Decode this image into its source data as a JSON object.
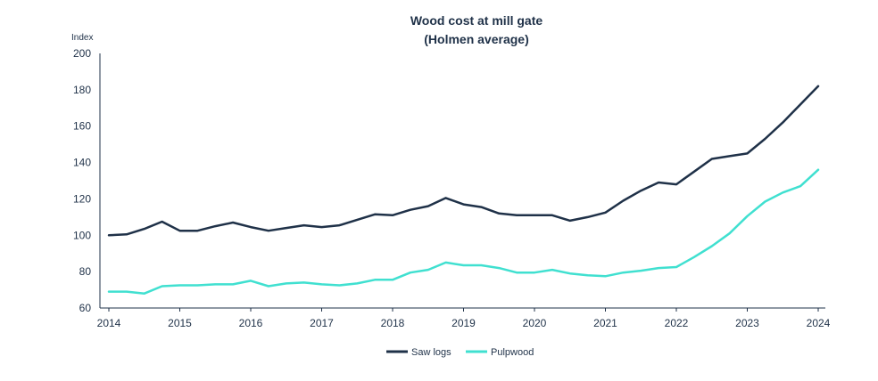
{
  "chart_data": {
    "type": "line",
    "title": "Wood cost at mill gate",
    "subtitle": "(Holmen average)",
    "ylabel": "Index",
    "xlabel": "",
    "ylim": [
      60,
      200
    ],
    "yticks": [
      60,
      80,
      100,
      120,
      140,
      160,
      180,
      200
    ],
    "xlim": [
      2014,
      2024
    ],
    "xticks": [
      "2014",
      "2015",
      "2016",
      "2017",
      "2018",
      "2019",
      "2020",
      "2021",
      "2022",
      "2023",
      "2024"
    ],
    "grid": false,
    "legend_position": "bottom-center",
    "x": [
      2014,
      2014.25,
      2014.5,
      2014.75,
      2015,
      2015.25,
      2015.5,
      2015.75,
      2016,
      2016.25,
      2016.5,
      2016.75,
      2017,
      2017.25,
      2017.5,
      2017.75,
      2018,
      2018.25,
      2018.5,
      2018.75,
      2019,
      2019.25,
      2019.5,
      2019.75,
      2020,
      2020.25,
      2020.5,
      2020.75,
      2021,
      2021.25,
      2021.5,
      2021.75,
      2022,
      2022.25,
      2022.5,
      2022.75,
      2023,
      2023.25,
      2023.5,
      2023.75,
      2024
    ],
    "series": [
      {
        "name": "Saw logs",
        "color": "#1f3148",
        "values": [
          100,
          100.5,
          103.5,
          107.5,
          102.5,
          102.5,
          105,
          107,
          104.5,
          102.5,
          104,
          105.5,
          104.5,
          105.5,
          108.5,
          111.5,
          111,
          114,
          116,
          120.5,
          117,
          115.5,
          112,
          111,
          111,
          111,
          108,
          110,
          112.5,
          119,
          124.5,
          129,
          128,
          135,
          142,
          143.5,
          145,
          153,
          162,
          172,
          182
        ]
      },
      {
        "name": "Pulpwood",
        "color": "#40e0d0",
        "values": [
          69,
          69,
          68,
          72,
          72.5,
          72.5,
          73,
          73,
          75,
          72,
          73.5,
          74,
          73,
          72.5,
          73.5,
          75.5,
          75.5,
          79.5,
          81,
          85,
          83.5,
          83.5,
          82,
          79.5,
          79.5,
          81,
          79,
          78,
          77.5,
          79.5,
          80.5,
          82,
          82.5,
          88,
          94,
          101,
          110.5,
          118.5,
          123.5,
          127,
          136
        ]
      }
    ]
  }
}
